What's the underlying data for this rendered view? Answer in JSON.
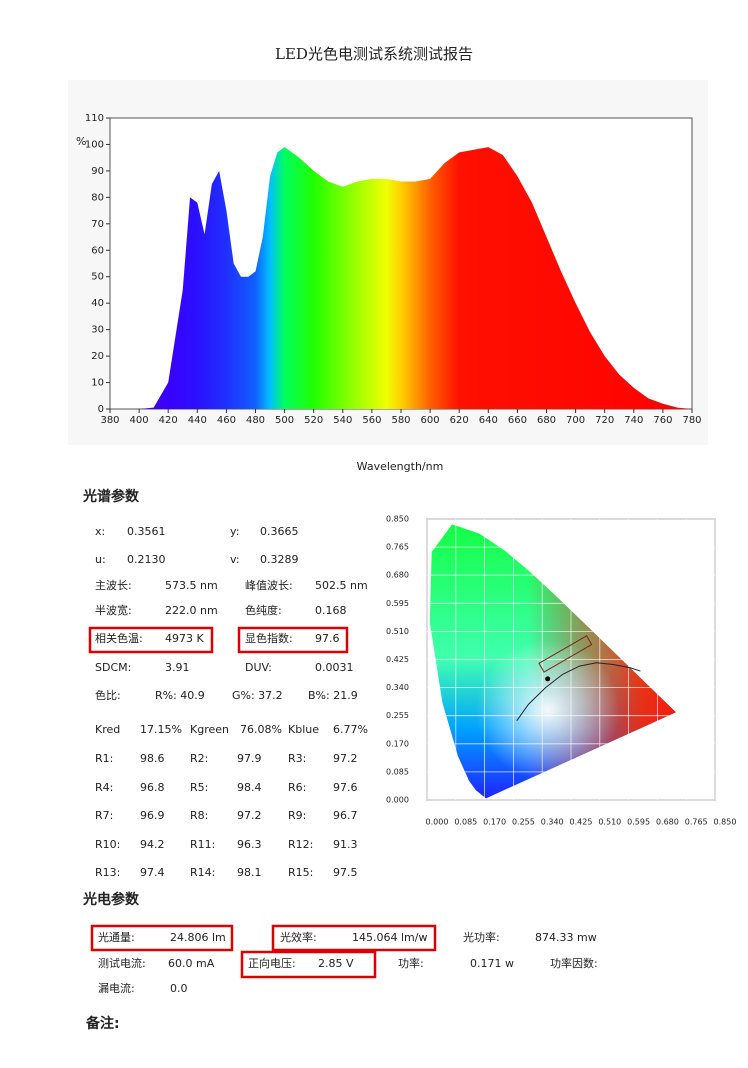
{
  "title": "LED光色电测试系统测试报告",
  "spectrum": {
    "type": "area",
    "y_label": "%",
    "x_label": "Wavelength/nm",
    "x": [
      380,
      390,
      400,
      410,
      420,
      430,
      435,
      440,
      445,
      450,
      455,
      460,
      465,
      470,
      475,
      480,
      485,
      490,
      495,
      500,
      510,
      520,
      530,
      540,
      550,
      560,
      570,
      580,
      590,
      600,
      610,
      620,
      630,
      640,
      650,
      660,
      670,
      680,
      690,
      700,
      710,
      720,
      730,
      740,
      750,
      760,
      770,
      780
    ],
    "values": [
      0,
      0,
      0,
      0.5,
      10,
      45,
      80,
      78,
      66,
      85,
      90,
      75,
      55,
      50,
      50,
      52,
      65,
      88,
      97,
      99,
      95,
      90,
      86,
      84,
      86,
      87,
      87,
      86,
      86,
      87,
      93,
      97,
      98,
      99,
      96,
      88,
      78,
      65,
      52,
      40,
      29,
      20,
      13,
      8,
      4,
      2,
      0.5,
      0
    ],
    "xlim": [
      380,
      780
    ],
    "ylim": [
      0,
      110
    ],
    "xticks": [
      380,
      400,
      420,
      440,
      460,
      480,
      500,
      520,
      540,
      560,
      580,
      600,
      620,
      640,
      660,
      680,
      700,
      720,
      740,
      760,
      780
    ],
    "yticks": [
      0,
      10,
      20,
      30,
      40,
      50,
      60,
      70,
      80,
      90,
      100,
      110
    ]
  },
  "spectral_params": {
    "title": "光谱参数",
    "rows": [
      [
        "x:",
        "0.3561",
        "y:",
        "0.3665"
      ],
      [
        "u:",
        "0.2130",
        "v:",
        "0.3289"
      ],
      [
        "主波长:",
        "573.5 nm",
        "峰值波长:",
        "502.5 nm"
      ],
      [
        "半波宽:",
        "222.0 nm",
        "色纯度:",
        "0.168"
      ],
      [
        "相关色温:",
        "4973 K",
        "显色指数:",
        "97.6"
      ],
      [
        "SDCM:",
        "3.91",
        "DUV:",
        "0.0031"
      ],
      [
        "色比:",
        "R%:  40.9",
        "G%:  37.2",
        "B%:  21.9"
      ],
      [
        "Kred",
        "17.15%",
        "Kgreen",
        "76.08%",
        "Kblue",
        "6.77%"
      ],
      [
        "R1:",
        "98.6",
        "R2:",
        "97.9",
        "R3:",
        "97.2"
      ],
      [
        "R4:",
        "96.8",
        "R5:",
        "98.4",
        "R6:",
        "97.6"
      ],
      [
        "R7:",
        "96.9",
        "R8:",
        "97.2",
        "R9:",
        "96.7"
      ],
      [
        "R10:",
        "94.2",
        "R11:",
        "96.3",
        "R12:",
        "91.3"
      ],
      [
        "R13:",
        "97.4",
        "R14:",
        "98.1",
        "R15:",
        "97.5"
      ]
    ]
  },
  "cie": {
    "xlim": [
      0,
      0.85
    ],
    "ylim": [
      0,
      0.85
    ],
    "xticks": [
      {
        "value": 0,
        "label": "0.000"
      },
      {
        "value": 0.085,
        "label": "0.085"
      },
      {
        "value": 0.17,
        "label": "0.170"
      },
      {
        "value": 0.255,
        "label": "0.255"
      },
      {
        "value": 0.34,
        "label": "0.340"
      },
      {
        "value": 0.425,
        "label": "0.425"
      },
      {
        "value": 0.51,
        "label": "0.510"
      },
      {
        "value": 0.595,
        "label": "0.595"
      },
      {
        "value": 0.68,
        "label": "0.680"
      },
      {
        "value": 0.765,
        "label": "0.765"
      },
      {
        "value": 0.85,
        "label": "0.850"
      }
    ],
    "yticks": [
      {
        "value": 0,
        "label": "0.000"
      },
      {
        "value": 0.085,
        "label": "0.085"
      },
      {
        "value": 0.17,
        "label": "0.170"
      },
      {
        "value": 0.255,
        "label": "0.255"
      },
      {
        "value": 0.34,
        "label": "0.340"
      },
      {
        "value": 0.425,
        "label": "0.425"
      },
      {
        "value": 0.51,
        "label": "0.510"
      },
      {
        "value": 0.595,
        "label": "0.595"
      },
      {
        "value": 0.68,
        "label": "0.680"
      },
      {
        "value": 0.765,
        "label": "0.765"
      },
      {
        "value": 0.85,
        "label": "0.850"
      }
    ]
  },
  "photo_params": {
    "title": "光电参数",
    "rows": [
      [
        "光通量:",
        "24.806 lm",
        "光效率:",
        "145.064 lm/w",
        "光功率:",
        "874.33 mw"
      ],
      [
        "测试电流:",
        "60.0 mA",
        "正向电压:",
        "2.85 V",
        "功率:",
        "0.171 w",
        "功率因数:"
      ],
      [
        "漏电流:",
        "0.0"
      ]
    ]
  },
  "remarks": "备注:"
}
